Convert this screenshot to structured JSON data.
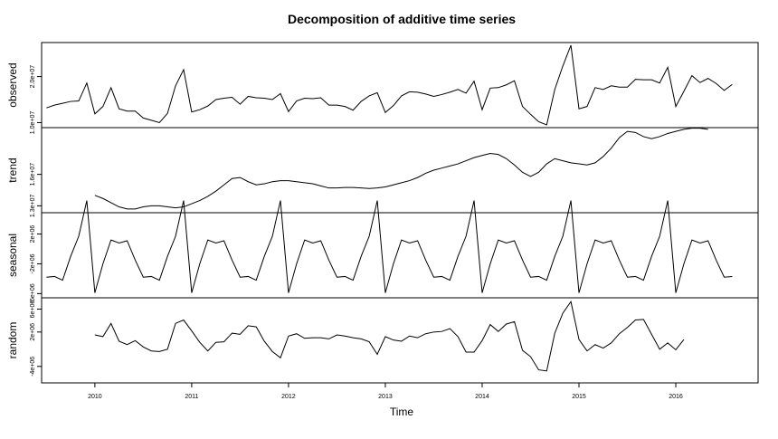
{
  "chart_data": {
    "type": "line",
    "title": "Decomposition of additive time series",
    "xlabel": "Time",
    "xlim": [
      2009.45,
      2016.85
    ],
    "x_ticks": [
      2010,
      2011,
      2012,
      2013,
      2014,
      2015,
      2016
    ],
    "x_tick_labels": [
      "2010",
      "2011",
      "2012",
      "2013",
      "2014",
      "2015",
      "2016"
    ],
    "start": 2009.5,
    "frequency": 12,
    "panels": [
      {
        "name": "observed",
        "ylabel": "observed",
        "ylim": [
          9500000,
          26800000
        ],
        "ticks": [
          10000000,
          20000000
        ],
        "tick_labels": [
          "1.0e+07",
          "2.0e+07"
        ],
        "values": [
          13200000,
          13800000,
          14200000,
          14600000,
          14700000,
          18600000,
          11900000,
          13500000,
          17600000,
          13000000,
          12500000,
          12500000,
          11000000,
          10500000,
          10000000,
          12000000,
          18000000,
          21500000,
          12300000,
          12800000,
          13600000,
          15000000,
          15300000,
          15500000,
          14000000,
          15700000,
          15400000,
          15300000,
          15000000,
          16300000,
          12400000,
          14700000,
          15300000,
          15200000,
          15400000,
          13800000,
          13800000,
          13500000,
          12700000,
          14600000,
          15800000,
          16500000,
          12200000,
          13700000,
          15800000,
          16700000,
          16600000,
          16200000,
          15700000,
          16100000,
          16600000,
          17200000,
          16400000,
          19000000,
          12800000,
          17500000,
          17600000,
          18200000,
          19100000,
          13500000,
          11800000,
          10200000,
          9500000,
          17200000,
          22300000,
          26800000,
          13000000,
          13500000,
          17600000,
          17200000,
          18000000,
          17700000,
          17700000,
          19400000,
          19300000,
          19300000,
          18600000,
          22000000,
          13500000,
          16800000,
          20200000,
          18700000,
          19600000,
          18500000,
          17000000,
          18300000
        ]
      },
      {
        "name": "trend",
        "ylabel": "trend",
        "ylim": [
          12600000,
          20200000
        ],
        "ticks": [
          13000000,
          16000000
        ],
        "tick_labels": [
          "1.3e+07",
          "1.6e+07"
        ],
        "values": [
          null,
          null,
          null,
          null,
          null,
          null,
          14000000,
          13700000,
          13300000,
          12900000,
          12700000,
          12700000,
          12900000,
          13000000,
          13000000,
          12900000,
          12800000,
          12900000,
          13200000,
          13500000,
          13900000,
          14400000,
          15000000,
          15600000,
          15700000,
          15300000,
          15000000,
          15100000,
          15300000,
          15400000,
          15400000,
          15300000,
          15200000,
          15100000,
          14900000,
          14700000,
          14700000,
          14750000,
          14750000,
          14700000,
          14650000,
          14700000,
          14800000,
          15000000,
          15200000,
          15400000,
          15700000,
          16100000,
          16400000,
          16600000,
          16800000,
          17000000,
          17300000,
          17600000,
          17800000,
          18000000,
          17900000,
          17500000,
          16900000,
          16200000,
          15800000,
          16200000,
          17000000,
          17500000,
          17300000,
          17100000,
          17000000,
          16900000,
          17100000,
          17700000,
          18500000,
          19500000,
          20100000,
          20000000,
          19600000,
          19400000,
          19600000,
          19900000,
          20100000,
          20300000,
          20400000,
          20400000,
          20300000,
          null,
          null,
          null
        ]
      },
      {
        "name": "seasonal",
        "ylabel": "seasonal",
        "ylim": [
          -6200000,
          4500000
        ],
        "ticks": [
          -6000000,
          -2000000,
          2000000
        ],
        "tick_labels": [
          "-6e+06",
          "-2e+06",
          "2e+06"
        ],
        "values": [
          -3800000,
          -3700000,
          -4200000,
          -1000000,
          1700000,
          6500000,
          -5900000,
          -2000000,
          1200000,
          800000,
          1100000,
          -1500000,
          -3800000,
          -3700000,
          -4200000,
          -1000000,
          1700000,
          6500000,
          -5900000,
          -2000000,
          1200000,
          800000,
          1100000,
          -1500000,
          -3800000,
          -3700000,
          -4200000,
          -1000000,
          1700000,
          6500000,
          -5900000,
          -2000000,
          1200000,
          800000,
          1100000,
          -1500000,
          -3800000,
          -3700000,
          -4200000,
          -1000000,
          1700000,
          6500000,
          -5900000,
          -2000000,
          1200000,
          800000,
          1100000,
          -1500000,
          -3800000,
          -3700000,
          -4200000,
          -1000000,
          1700000,
          6500000,
          -5900000,
          -2000000,
          1200000,
          800000,
          1100000,
          -1500000,
          -3800000,
          -3700000,
          -4200000,
          -1000000,
          1700000,
          6500000,
          -5900000,
          -2000000,
          1200000,
          800000,
          1100000,
          -1500000,
          -3800000,
          -3700000,
          -4200000,
          -1000000,
          1700000,
          6500000,
          -5900000,
          -2000000,
          1200000,
          800000,
          1100000,
          -1500000,
          -3800000,
          -3700000
        ]
      },
      {
        "name": "random",
        "ylabel": "random",
        "ylim": [
          -6400000,
          7500000
        ],
        "ticks": [
          -4000000,
          2000000,
          6000000
        ],
        "tick_labels": [
          "-4e+06",
          "2e+06",
          "6e+06"
        ],
        "values": [
          null,
          null,
          null,
          null,
          null,
          null,
          1500000,
          1200000,
          3500000,
          400000,
          -200000,
          500000,
          -600000,
          -1300000,
          -1400000,
          -1000000,
          3500000,
          4100000,
          2200000,
          200000,
          -1300000,
          200000,
          300000,
          1800000,
          1600000,
          3100000,
          2900000,
          400000,
          -1400000,
          -2500000,
          1300000,
          1700000,
          900000,
          1000000,
          1000000,
          800000,
          1500000,
          1300000,
          1000000,
          800000,
          300000,
          -1900000,
          1200000,
          600000,
          400000,
          1300000,
          1000000,
          1700000,
          2000000,
          2100000,
          2600000,
          1200000,
          -1500000,
          -1500000,
          500000,
          3300000,
          2100000,
          3400000,
          3800000,
          -1200000,
          -2300000,
          -4600000,
          -4800000,
          1800000,
          5300000,
          7300000,
          700000,
          -1300000,
          -200000,
          -800000,
          100000,
          1700000,
          2800000,
          4100000,
          4200000,
          1600000,
          -1000000,
          100000,
          -1100000,
          700000,
          null,
          null,
          null,
          null,
          null,
          null
        ]
      }
    ]
  }
}
